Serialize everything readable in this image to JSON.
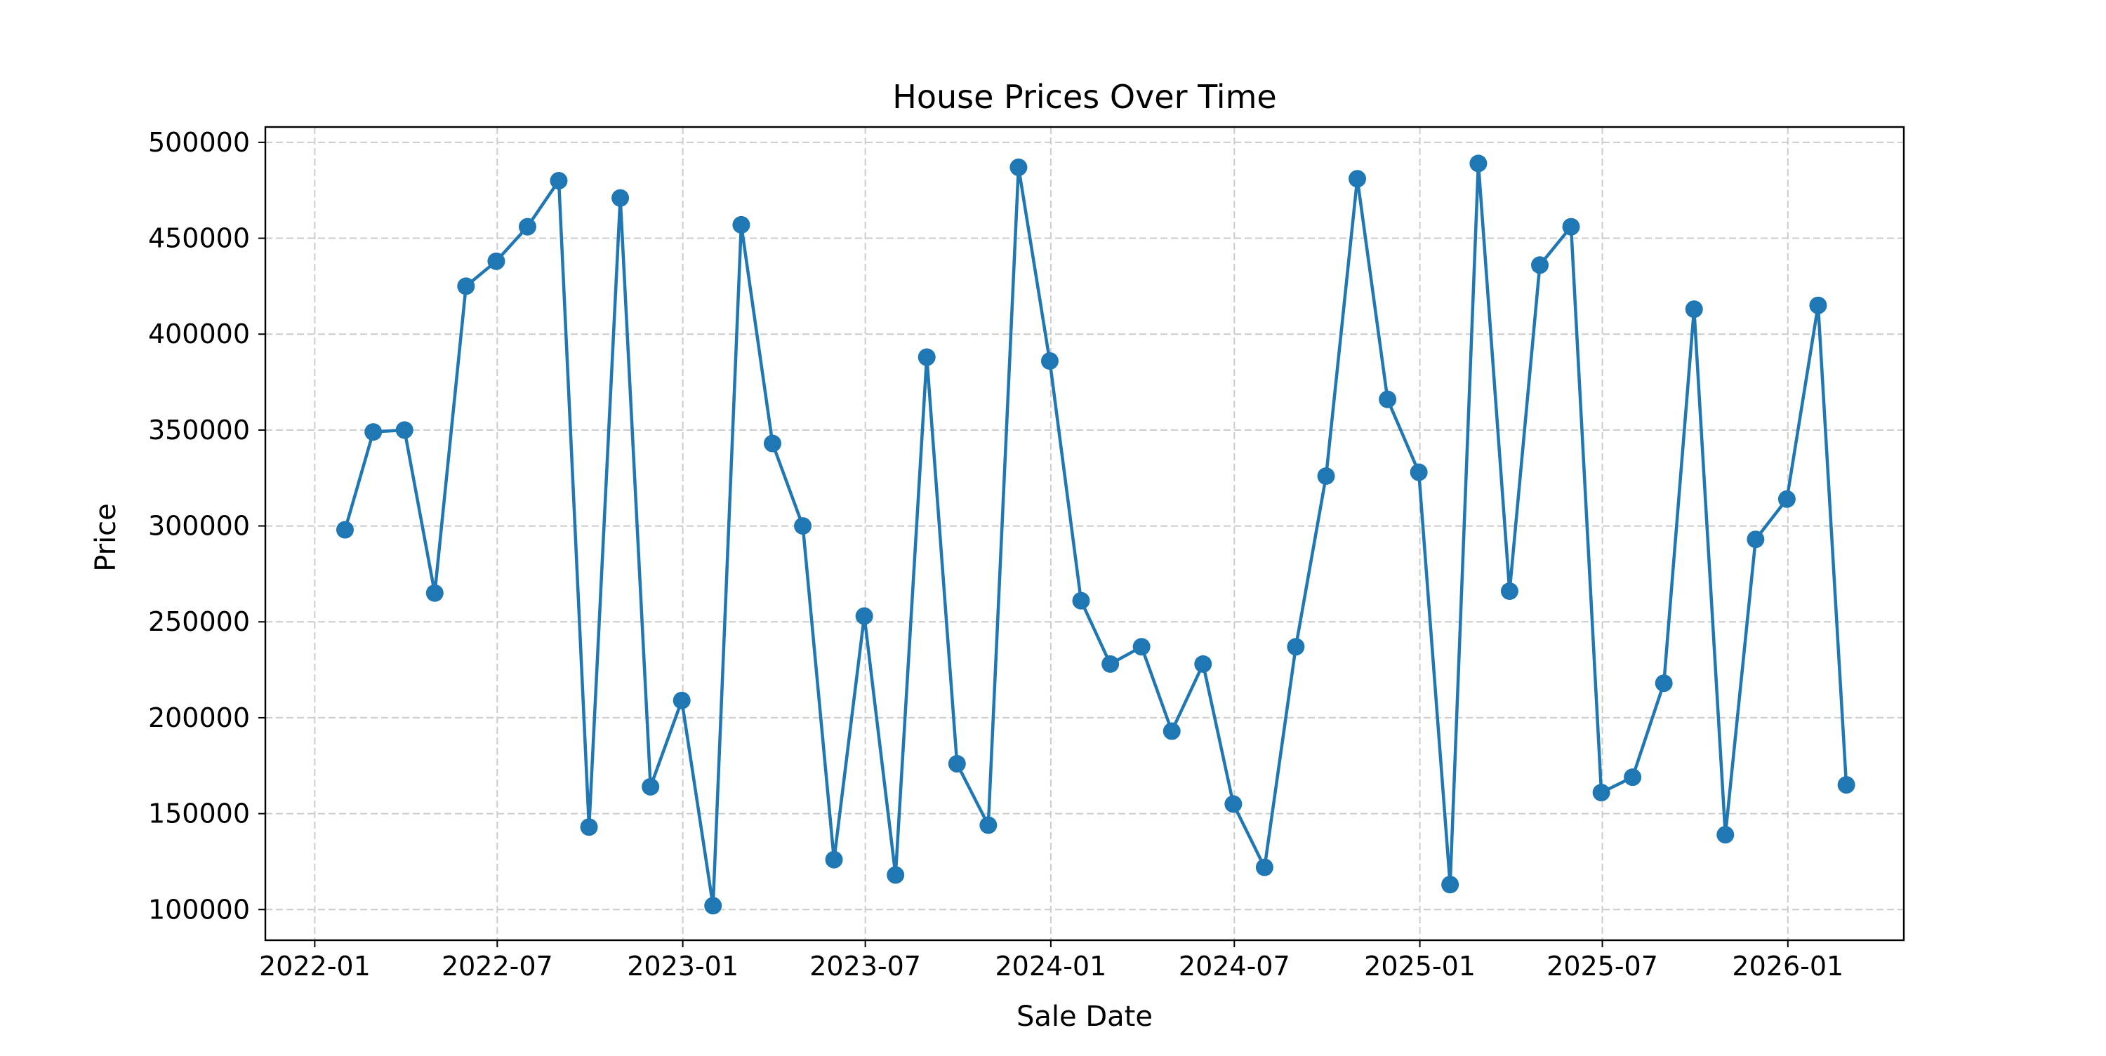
{
  "chart_data": {
    "type": "line",
    "title": "House Prices Over Time",
    "xlabel": "Sale Date",
    "ylabel": "Price",
    "x_tick_labels": [
      "2022-01",
      "2022-07",
      "2023-01",
      "2023-07",
      "2024-01",
      "2024-07",
      "2025-01",
      "2025-07",
      "2026-01"
    ],
    "y_tick_labels": [
      "100000",
      "150000",
      "200000",
      "250000",
      "300000",
      "350000",
      "400000",
      "450000",
      "500000"
    ],
    "ylim": [
      84000,
      508000
    ],
    "xlim": [
      "2021-11-13",
      "2026-04-26"
    ],
    "grid": true,
    "color": "#1f77b4",
    "marker": "circle",
    "series": [
      {
        "x": [
          "2022-01-31",
          "2022-02-28",
          "2022-03-31",
          "2022-04-30",
          "2022-05-31",
          "2022-06-30",
          "2022-07-31",
          "2022-08-31",
          "2022-09-30",
          "2022-10-31",
          "2022-11-30",
          "2022-12-31",
          "2023-01-31",
          "2023-02-28",
          "2023-03-31",
          "2023-04-30",
          "2023-05-31",
          "2023-06-30",
          "2023-07-31",
          "2023-08-31",
          "2023-09-30",
          "2023-10-31",
          "2023-11-30",
          "2023-12-31",
          "2024-01-31",
          "2024-02-29",
          "2024-03-31",
          "2024-04-30",
          "2024-05-31",
          "2024-06-30",
          "2024-07-31",
          "2024-08-31",
          "2024-09-30",
          "2024-10-31",
          "2024-11-30",
          "2024-12-31",
          "2025-01-31",
          "2025-02-28",
          "2025-03-31",
          "2025-04-30",
          "2025-05-31",
          "2025-06-30",
          "2025-07-31",
          "2025-08-31",
          "2025-09-30",
          "2025-10-31",
          "2025-11-30",
          "2025-12-31",
          "2026-01-31",
          "2026-02-28"
        ],
        "y": [
          298000,
          349000,
          350000,
          265000,
          425000,
          438000,
          456000,
          480000,
          143000,
          471000,
          164000,
          209000,
          102000,
          457000,
          343000,
          300000,
          126000,
          253000,
          118000,
          388000,
          176000,
          144000,
          487000,
          386000,
          261000,
          228000,
          237000,
          193000,
          228000,
          155000,
          122000,
          237000,
          326000,
          481000,
          366000,
          328000,
          113000,
          489000,
          266000,
          436000,
          456000,
          161000,
          169000,
          218000,
          413000,
          139000,
          293000,
          314000,
          415000,
          165000
        ]
      }
    ]
  }
}
